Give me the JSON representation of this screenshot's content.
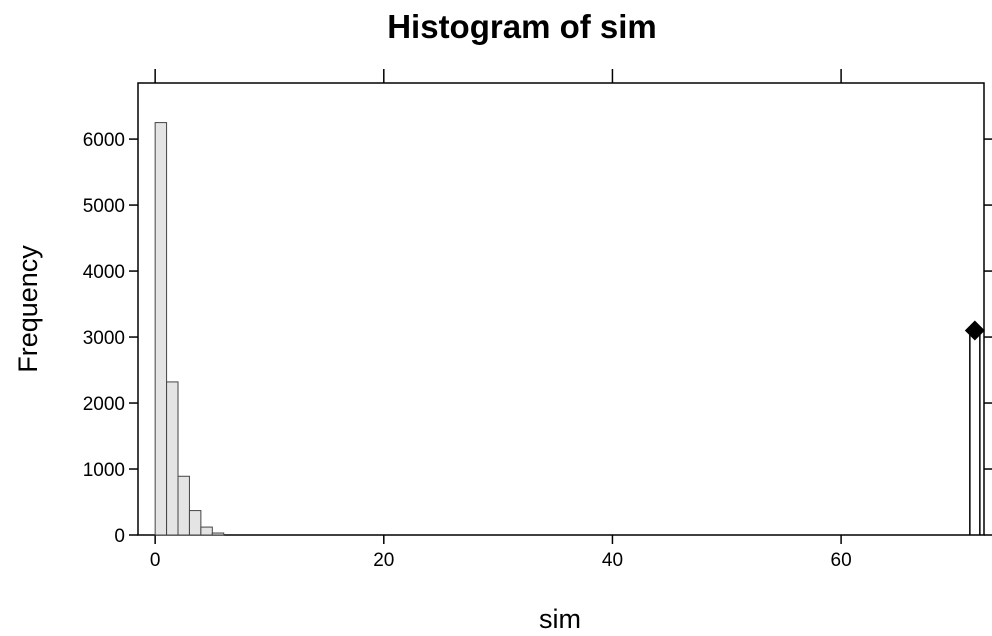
{
  "chart_data": {
    "type": "bar",
    "title": "Histogram of sim",
    "xlabel": "sim",
    "ylabel": "Frequency",
    "xlim": [
      -1.5,
      72.5
    ],
    "ylim": [
      0,
      6850
    ],
    "x_ticks": [
      0,
      20,
      40,
      60
    ],
    "y_ticks": [
      0,
      1000,
      2000,
      3000,
      4000,
      5000,
      6000
    ],
    "bin_width": 1,
    "bins": [
      {
        "x0": 0,
        "x1": 1,
        "count": 6250
      },
      {
        "x0": 1,
        "x1": 2,
        "count": 2320
      },
      {
        "x0": 2,
        "x1": 3,
        "count": 890
      },
      {
        "x0": 3,
        "x1": 4,
        "count": 370
      },
      {
        "x0": 4,
        "x1": 5,
        "count": 120
      },
      {
        "x0": 5,
        "x1": 6,
        "count": 30
      }
    ],
    "observed": {
      "value": 71.7,
      "marker_y": 3100,
      "marker": "diamond"
    },
    "grid": false
  }
}
